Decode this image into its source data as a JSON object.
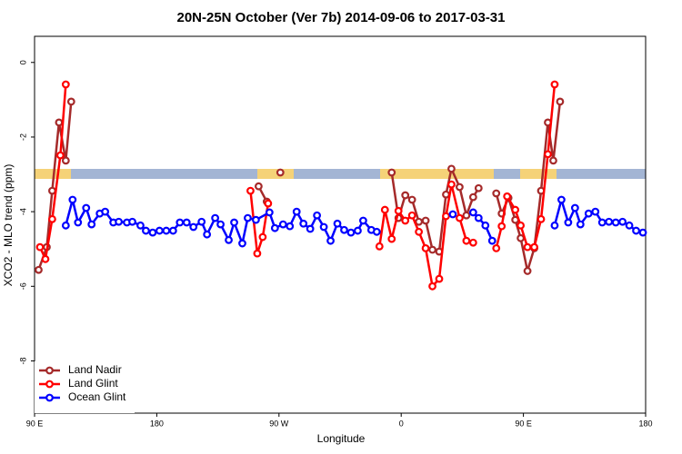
{
  "chart_data": {
    "type": "line",
    "title": "20N-25N October (Ver 7b)   2014-09-06 to 2017-03-31",
    "x_label": "Longitude",
    "y_label": "XCO2 - MLO trend (ppm)",
    "xlim": [
      90,
      540
    ],
    "ylim": [
      0.7,
      -9.4
    ],
    "xticks": [
      {
        "value": 90,
        "label": "90 E"
      },
      180,
      {
        "value": 270,
        "label": "90 W"
      },
      {
        "value": 360,
        "label": "0"
      },
      {
        "value": 450,
        "label": "90 E"
      },
      {
        "value": 540,
        "label": "180"
      }
    ],
    "yticks": [
      0,
      -2,
      -4,
      -6,
      -8
    ],
    "legend": "bottomleft",
    "series": [
      {
        "name": "Land Nadir",
        "color": "#a52a2a",
        "x": [
          93,
          99,
          103,
          108,
          113,
          117,
          null,
          255,
          261,
          null,
          271,
          null,
          353,
          358,
          363,
          368,
          373,
          378,
          383,
          388,
          393,
          397,
          403,
          408,
          413,
          417,
          null,
          430,
          434,
          439,
          444,
          448,
          453,
          458,
          463,
          468,
          472,
          477
        ],
        "values": [
          -5.56,
          -4.95,
          -3.44,
          -1.61,
          -2.63,
          -1.05,
          null,
          -3.32,
          -3.73,
          null,
          -2.95,
          null,
          -2.95,
          -4.17,
          -3.56,
          -3.68,
          -4.27,
          -4.24,
          -5.02,
          -5.07,
          -3.54,
          -2.85,
          -3.34,
          -4.1,
          -3.61,
          -3.37,
          null,
          -3.51,
          -4.05,
          -3.63,
          -4.22,
          -4.71,
          -5.59,
          -4.98,
          -3.44,
          -1.61,
          -2.63,
          -1.05
        ]
      },
      {
        "name": "Land Glint",
        "color": "#ff0000",
        "x": [
          94,
          98,
          103,
          109,
          113,
          null,
          249,
          254,
          258,
          262,
          null,
          344,
          348,
          353,
          358,
          363,
          368,
          373,
          378,
          383,
          388,
          393,
          397,
          403,
          408,
          413,
          null,
          430,
          434,
          438,
          444,
          448,
          453,
          458,
          463,
          468,
          473
        ],
        "values": [
          -4.95,
          -5.27,
          -4.2,
          -2.49,
          -0.59,
          null,
          -3.44,
          -5.12,
          -4.68,
          -3.78,
          null,
          -4.93,
          -3.95,
          -4.73,
          -3.98,
          -4.24,
          -4.1,
          -4.54,
          -4.98,
          -6.0,
          -5.8,
          -4.12,
          -3.27,
          -4.17,
          -4.78,
          -4.83,
          null,
          -4.98,
          -4.39,
          -3.59,
          -3.95,
          -4.37,
          -4.95,
          -4.95,
          -4.2,
          -2.46,
          -0.59
        ]
      },
      {
        "name": "Ocean Glint",
        "color": "#0000ff",
        "x": [
          113,
          118,
          122,
          128,
          132,
          138,
          142,
          148,
          152,
          158,
          162,
          168,
          172,
          177,
          182,
          187,
          192,
          197,
          202,
          207,
          213,
          217,
          223,
          227,
          233,
          237,
          243,
          247,
          253,
          263,
          267,
          273,
          278,
          283,
          288,
          293,
          298,
          303,
          308,
          313,
          318,
          323,
          328,
          332,
          338,
          342,
          null,
          398,
          null,
          413,
          417,
          422,
          427,
          null,
          473,
          478,
          483,
          488,
          492,
          498,
          503,
          508,
          513,
          518,
          523,
          528,
          533,
          538
        ],
        "values": [
          -4.37,
          -3.68,
          -4.29,
          -3.9,
          -4.34,
          -4.05,
          -4.0,
          -4.29,
          -4.27,
          -4.29,
          -4.27,
          -4.37,
          -4.51,
          -4.56,
          -4.51,
          -4.51,
          -4.51,
          -4.29,
          -4.29,
          -4.41,
          -4.27,
          -4.61,
          -4.17,
          -4.34,
          -4.76,
          -4.29,
          -4.85,
          -4.17,
          -4.22,
          -4.02,
          -4.44,
          -4.34,
          -4.39,
          -4.0,
          -4.32,
          -4.46,
          -4.1,
          -4.41,
          -4.78,
          -4.32,
          -4.49,
          -4.56,
          -4.51,
          -4.24,
          -4.49,
          -4.54,
          null,
          -4.07,
          null,
          -4.02,
          -4.17,
          -4.37,
          -4.78,
          null,
          -4.37,
          -3.68,
          -4.29,
          -3.9,
          -4.34,
          -4.05,
          -4.0,
          -4.29,
          -4.27,
          -4.29,
          -4.27,
          -4.37,
          -4.51,
          -4.56
        ]
      }
    ]
  }
}
